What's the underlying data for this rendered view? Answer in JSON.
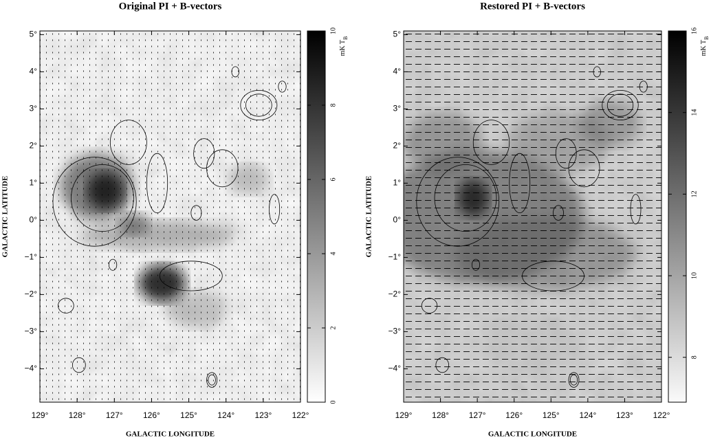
{
  "chart_data": [
    {
      "type": "map",
      "title": "Original PI + B-vectors",
      "x_label": "GALACTIC LONGITUDE",
      "y_label": "GALACTIC LATITUDE",
      "xlim": [
        129,
        122
      ],
      "ylim": [
        -4.9,
        5.1
      ],
      "xticks": [
        {
          "value": 129,
          "label": "129°"
        },
        {
          "value": 128,
          "label": "128°"
        },
        {
          "value": 127,
          "label": "127°"
        },
        {
          "value": 126,
          "label": "126°"
        },
        {
          "value": 125,
          "label": "125°"
        },
        {
          "value": 124,
          "label": "124°"
        },
        {
          "value": 123,
          "label": "123°"
        },
        {
          "value": 122,
          "label": "122°"
        }
      ],
      "yticks": [
        {
          "value": 5,
          "label": "5°"
        },
        {
          "value": 4,
          "label": "4°"
        },
        {
          "value": 3,
          "label": "3°"
        },
        {
          "value": 2,
          "label": "2°"
        },
        {
          "value": 1,
          "label": "1°"
        },
        {
          "value": 0,
          "label": "0°"
        },
        {
          "value": -1,
          "label": "−1°"
        },
        {
          "value": -2,
          "label": "−2°"
        },
        {
          "value": -3,
          "label": "−3°"
        },
        {
          "value": -4,
          "label": "−4°"
        }
      ],
      "colorbar": {
        "label": "mK T",
        "label_sub": "B",
        "lim": [
          0,
          10
        ],
        "ticks": [
          0,
          2,
          4,
          6,
          8,
          10
        ]
      }
    },
    {
      "type": "map",
      "title": "Restored PI + B-vectors",
      "x_label": "GALACTIC LONGITUDE",
      "y_label": "GALACTIC LATITUDE",
      "xlim": [
        129,
        122
      ],
      "ylim": [
        -4.9,
        5.1
      ],
      "xticks": [
        {
          "value": 129,
          "label": "129°"
        },
        {
          "value": 128,
          "label": "128°"
        },
        {
          "value": 127,
          "label": "127°"
        },
        {
          "value": 126,
          "label": "126°"
        },
        {
          "value": 125,
          "label": "125°"
        },
        {
          "value": 124,
          "label": "124°"
        },
        {
          "value": 123,
          "label": "123°"
        },
        {
          "value": 122,
          "label": "122°"
        }
      ],
      "yticks": [
        {
          "value": 5,
          "label": "5°"
        },
        {
          "value": 4,
          "label": "4°"
        },
        {
          "value": 3,
          "label": "3°"
        },
        {
          "value": 2,
          "label": "2°"
        },
        {
          "value": 1,
          "label": "1°"
        },
        {
          "value": 0,
          "label": "0°"
        },
        {
          "value": -1,
          "label": "−1°"
        },
        {
          "value": -2,
          "label": "−2°"
        },
        {
          "value": -3,
          "label": "−3°"
        },
        {
          "value": -4,
          "label": "−4°"
        }
      ],
      "colorbar": {
        "label": "mK T",
        "label_sub": "B",
        "lim": [
          6.9,
          16
        ],
        "ticks": [
          8,
          10,
          12,
          14,
          16
        ]
      }
    }
  ]
}
